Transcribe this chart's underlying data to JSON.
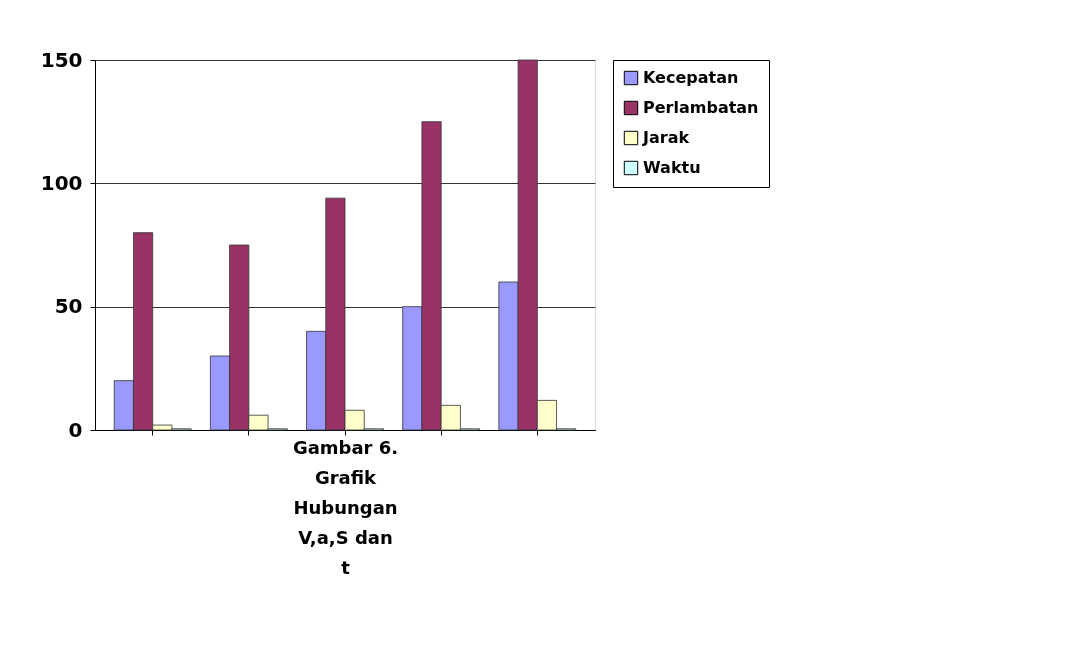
{
  "chart_data": {
    "type": "bar",
    "categories": [
      null,
      null,
      null,
      null,
      null
    ],
    "xlabel": "Gambar 6. Grafik Hubungan V,a,S dan t",
    "series": [
      {
        "name": "Kecepatan",
        "color": "#9999ff",
        "values": [
          20,
          30,
          40,
          50,
          60
        ]
      },
      {
        "name": "Perlambatan",
        "color": "#993366",
        "values": [
          80,
          75,
          94,
          125,
          150
        ]
      },
      {
        "name": "Jarak",
        "color": "#ffffcc",
        "values": [
          2,
          6,
          8,
          10,
          12
        ]
      },
      {
        "name": "Waktu",
        "color": "#ccffff",
        "values": [
          0.5,
          0.5,
          0.5,
          0.5,
          0.5
        ]
      }
    ],
    "ylim": [
      0,
      150
    ],
    "yticks": [
      0,
      50,
      100,
      150
    ],
    "grid": "y",
    "legend": "right",
    "tick_labels": "y"
  }
}
